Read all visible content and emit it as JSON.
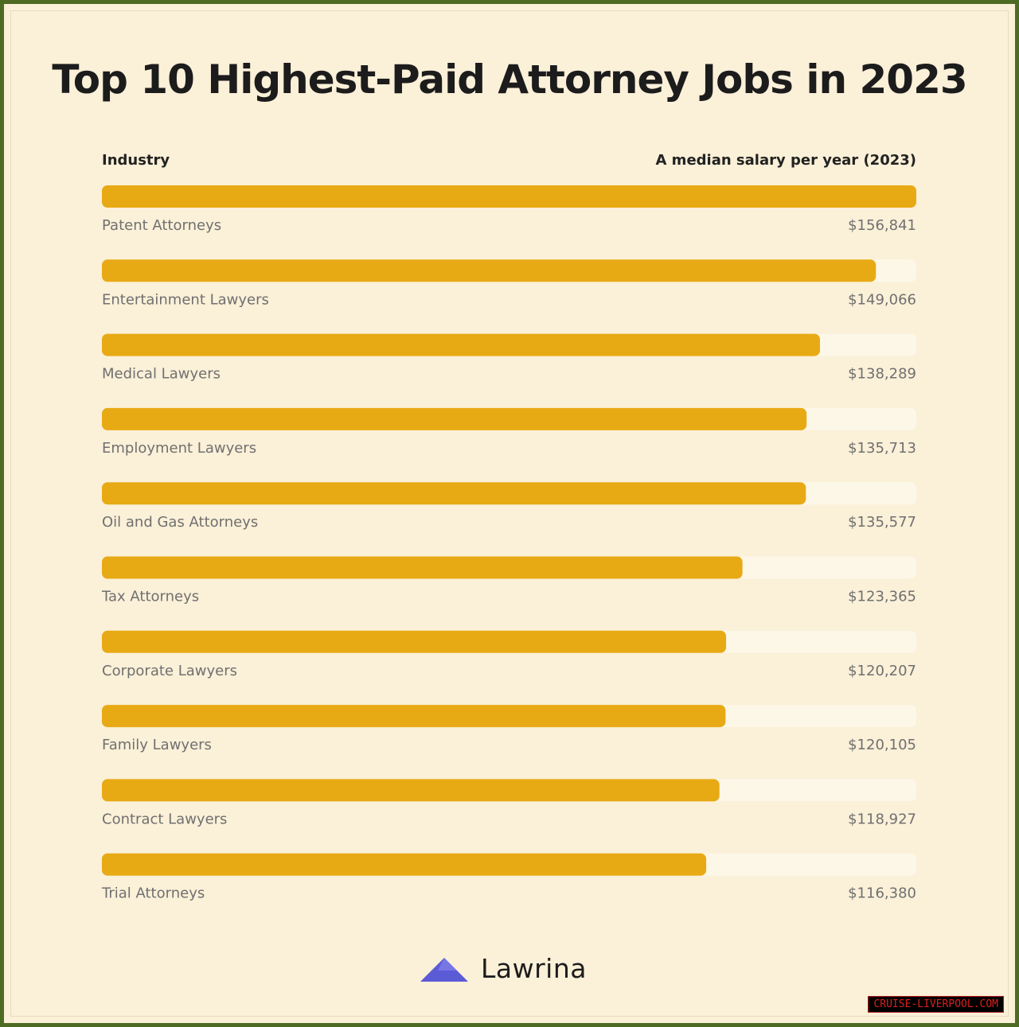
{
  "title": "Top 10 Highest-Paid Attorney Jobs in 2023",
  "header": {
    "left": "Industry",
    "right": "A median salary per year (2023)"
  },
  "brand": {
    "name": "Lawrina",
    "logo_icon": "triangle-roof-logo"
  },
  "watermark": "CRUISE-LIVERPOOL.COM",
  "colors": {
    "bar": "#e8aa14",
    "track": "#fdf7e8",
    "background": "#fbf0d8",
    "border": "#4e6b24",
    "logo": "#5b5bd6"
  },
  "chart_data": {
    "type": "bar",
    "orientation": "horizontal",
    "categories": [
      "Patent Attorneys",
      "Entertainment Lawyers",
      "Medical Lawyers",
      "Employment Lawyers",
      "Oil and Gas Attorneys",
      "Tax Attorneys",
      "Corporate Lawyers",
      "Family Lawyers",
      "Contract Lawyers",
      "Trial Attorneys"
    ],
    "values": [
      156841,
      149066,
      138289,
      135713,
      135577,
      123365,
      120207,
      120105,
      118927,
      116380
    ],
    "value_labels": [
      "$156,841",
      "$149,066",
      "$138,289",
      "$135,713",
      "$135,577",
      "$123,365",
      "$120,207",
      "$120,105",
      "$118,927",
      "$116,380"
    ],
    "xlim": [
      0,
      156841
    ],
    "grid": false
  }
}
